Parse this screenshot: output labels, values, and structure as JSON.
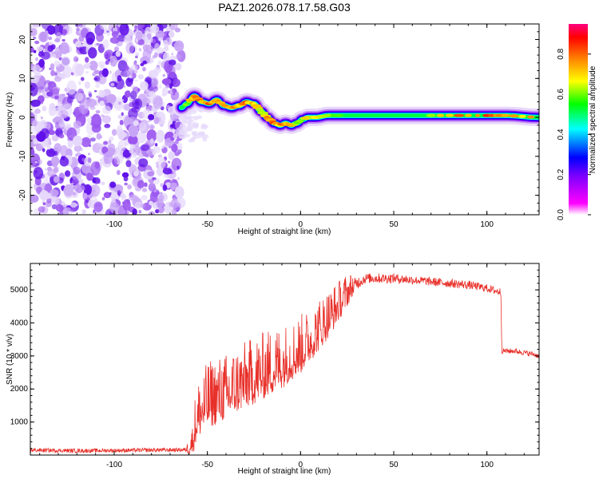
{
  "chart_data": [
    {
      "type": "heatmap",
      "title": "PAZ1.2026.078.17.58.G03",
      "xlabel": "Height of straight line (km)",
      "ylabel": "Frequency (Hz)",
      "xlim": [
        -145,
        128
      ],
      "ylim": [
        -25,
        24
      ],
      "xticks": [
        -100,
        -50,
        0,
        50,
        100
      ],
      "yticks": [
        -20,
        -10,
        0,
        10,
        20
      ],
      "colorbar": {
        "label": "Normalized spectral amplitude",
        "range": [
          0,
          0.95
        ],
        "ticks": [
          0.0,
          0.2,
          0.4,
          0.6,
          0.8
        ],
        "tick_labels": [
          "0.0",
          "0.2",
          "0.4",
          "0.6",
          "0.8"
        ]
      },
      "noise_region_x": [
        -145,
        -64
      ],
      "ridge": {
        "x": [
          -64,
          -61,
          -57,
          -53,
          -49,
          -45,
          -41,
          -37,
          -33,
          -29,
          -25,
          -21,
          -18,
          -14,
          -11,
          -8,
          -5,
          -2,
          1,
          4,
          8,
          15,
          25,
          40,
          60,
          80,
          100,
          110,
          128
        ],
        "y": [
          2.5,
          3.5,
          5.5,
          4.0,
          3.5,
          4.5,
          3.0,
          2.5,
          3.0,
          4.0,
          3.5,
          1.5,
          0.0,
          -1.5,
          -2.0,
          -1.5,
          -2.0,
          -1.5,
          -0.5,
          0.0,
          0.0,
          0.5,
          0.5,
          0.5,
          0.5,
          0.5,
          0.5,
          0.5,
          0.0
        ],
        "amp": [
          0.5,
          0.65,
          0.85,
          0.8,
          0.85,
          0.9,
          0.8,
          0.85,
          0.8,
          0.85,
          0.75,
          0.7,
          0.8,
          0.85,
          0.8,
          0.85,
          0.8,
          0.7,
          0.6,
          0.8,
          0.75,
          0.65,
          0.6,
          0.55,
          0.6,
          0.8,
          0.9,
          0.75,
          0.8
        ]
      }
    },
    {
      "type": "line",
      "xlabel": "Height of straight line (km)",
      "ylabel": "SNR (10 * v/v)",
      "xlim": [
        -145,
        128
      ],
      "ylim": [
        0,
        5800
      ],
      "xticks": [
        -100,
        -50,
        0,
        50,
        100
      ],
      "yticks": [
        1000,
        2000,
        3000,
        4000,
        5000
      ],
      "color": "#e8302a",
      "series": [
        {
          "name": "SNR",
          "x": [
            -145,
            -120,
            -100,
            -80,
            -62,
            -58,
            -56,
            -53,
            -50,
            -45,
            -40,
            -35,
            -30,
            -25,
            -20,
            -15,
            -10,
            -5,
            0,
            5,
            10,
            15,
            20,
            25,
            30,
            35,
            40,
            45,
            50,
            60,
            70,
            80,
            90,
            100,
            106,
            107.5,
            108,
            110,
            115,
            120,
            125,
            128
          ],
          "y": [
            150,
            130,
            140,
            150,
            160,
            300,
            900,
            1200,
            1400,
            1550,
            1650,
            1850,
            2000,
            2150,
            2300,
            2450,
            2600,
            2800,
            3000,
            3300,
            3650,
            4000,
            4400,
            4800,
            5200,
            5350,
            5350,
            5350,
            5350,
            5300,
            5250,
            5200,
            5150,
            5050,
            4950,
            4950,
            3150,
            3150,
            3150,
            3100,
            3050,
            3000
          ],
          "noise": [
            60,
            60,
            60,
            60,
            60,
            400,
            800,
            800,
            900,
            900,
            900,
            900,
            900,
            900,
            900,
            900,
            850,
            800,
            800,
            700,
            700,
            650,
            550,
            450,
            200,
            150,
            150,
            150,
            150,
            130,
            130,
            130,
            130,
            120,
            120,
            120,
            80,
            80,
            80,
            80,
            80,
            80
          ]
        }
      ]
    }
  ],
  "colors": {
    "colormap": [
      "#ffffff",
      "#ff00ff",
      "#8000ff",
      "#0000ff",
      "#00ffff",
      "#00ff00",
      "#ffff00",
      "#ff8000",
      "#ff0000",
      "#ff0080"
    ],
    "line": "#e8302a",
    "axis": "#000000"
  }
}
